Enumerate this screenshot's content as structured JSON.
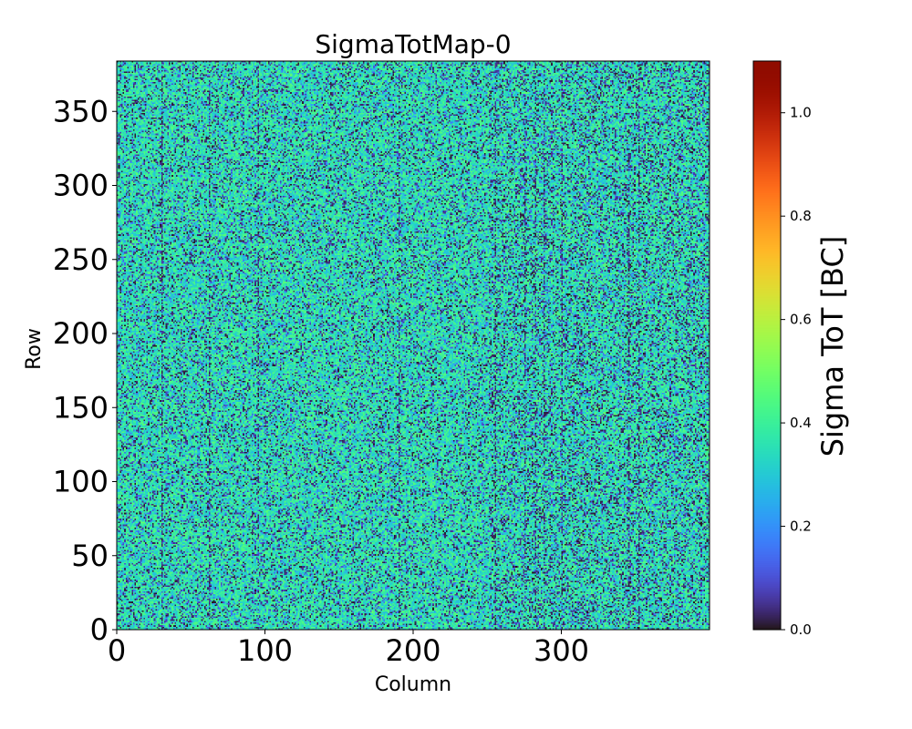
{
  "chart_data": {
    "type": "heatmap",
    "title": "SigmaTotMap-0",
    "xlabel": "Column",
    "ylabel": "Row",
    "xlim": [
      0,
      400
    ],
    "ylim": [
      0,
      384
    ],
    "xticks": [
      0,
      100,
      200,
      300
    ],
    "yticks": [
      0,
      50,
      100,
      150,
      200,
      250,
      300,
      350
    ],
    "xtick_labels": [
      "0",
      "100",
      "200",
      "300"
    ],
    "ytick_labels": [
      "0",
      "50",
      "100",
      "150",
      "200",
      "250",
      "300",
      "350"
    ],
    "grid": false,
    "colormap": "turbo",
    "colorbar": {
      "label": "Sigma ToT [BC]",
      "range": [
        0.0,
        1.1
      ],
      "ticks": [
        0.0,
        0.2,
        0.4,
        0.6,
        0.8,
        1.0
      ],
      "tick_labels": [
        "0.0",
        "0.2",
        "0.4",
        "0.6",
        "0.8",
        "1.0"
      ]
    },
    "grid_size": {
      "columns": 400,
      "rows": 384
    },
    "value_distribution": {
      "typical_min": 0.0,
      "typical_max": 0.5,
      "mean": 0.33
    },
    "darker_columns": [
      30,
      62,
      95,
      190,
      255,
      275,
      282,
      288,
      300,
      345,
      352
    ]
  }
}
